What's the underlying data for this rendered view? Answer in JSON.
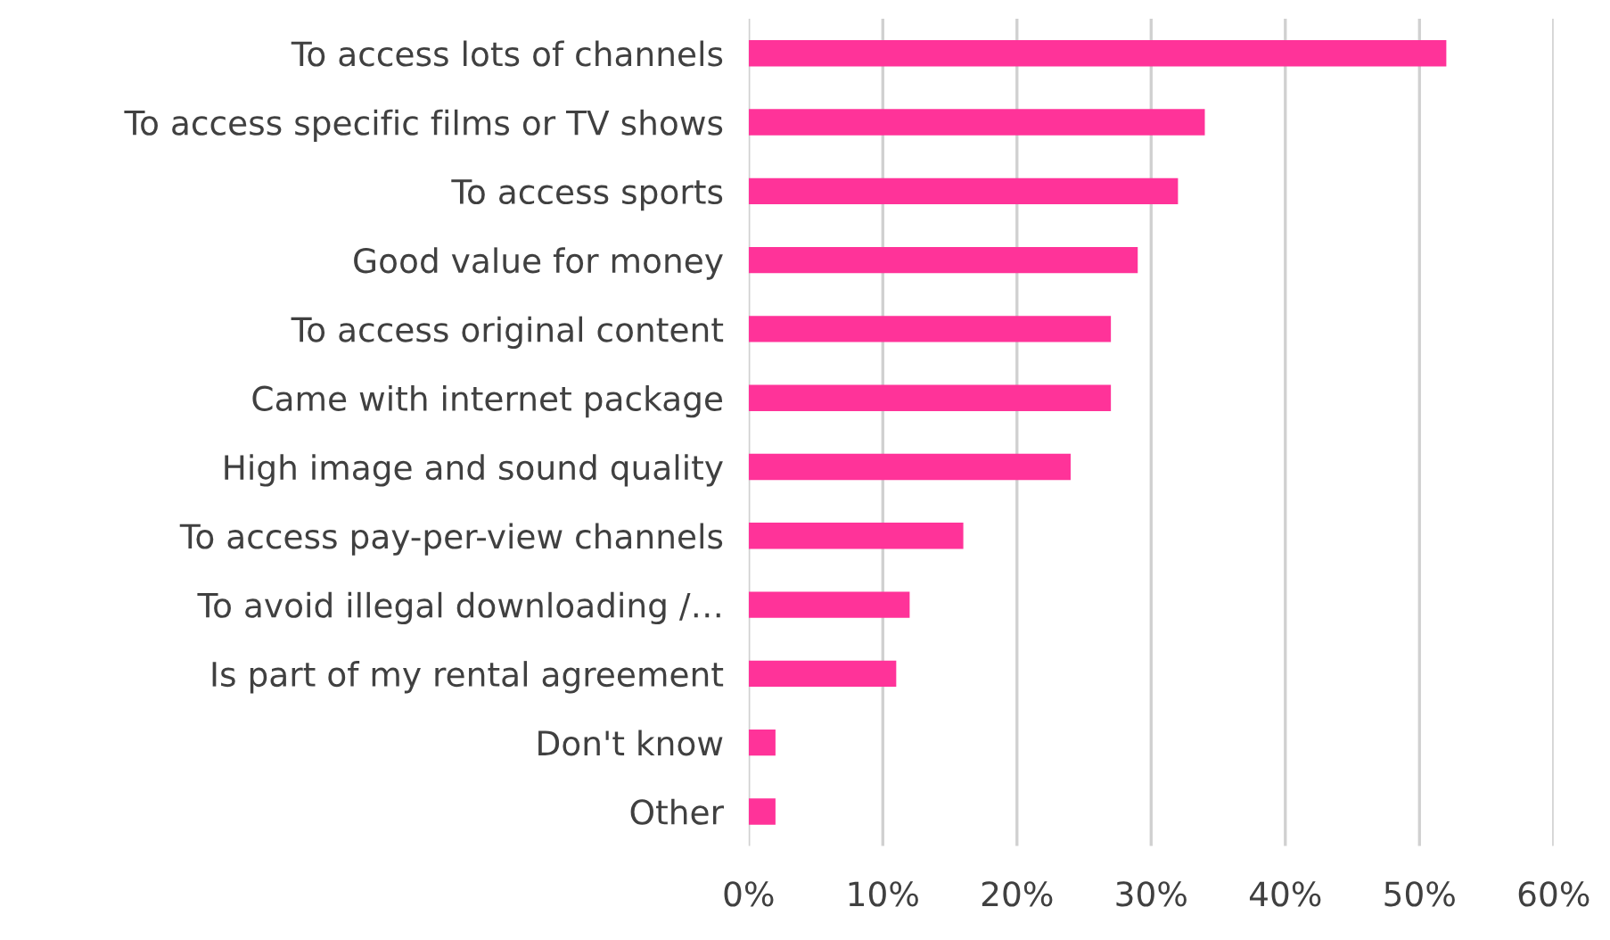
{
  "chart_data": {
    "type": "bar",
    "orientation": "horizontal",
    "categories": [
      "To access lots of channels",
      "To access specific films or TV shows",
      "To access sports",
      "Good value for money",
      "To access original content",
      "Came with internet package",
      "High image and sound quality",
      "To access pay-per-view channels",
      "To avoid illegal downloading /…",
      "Is part of my rental agreement",
      "Don't know",
      "Other"
    ],
    "values": [
      52,
      34,
      32,
      29,
      27,
      27,
      24,
      16,
      12,
      11,
      2,
      2
    ],
    "color": "#ff3399",
    "xlim": [
      0,
      60
    ],
    "xticks": [
      {
        "value": 0,
        "label": "0%"
      },
      {
        "value": 10,
        "label": "10%"
      },
      {
        "value": 20,
        "label": "20%"
      },
      {
        "value": 30,
        "label": "30%"
      },
      {
        "value": 40,
        "label": "40%"
      },
      {
        "value": 50,
        "label": "50%"
      },
      {
        "value": 60,
        "label": "60%"
      }
    ],
    "grid": "x"
  }
}
